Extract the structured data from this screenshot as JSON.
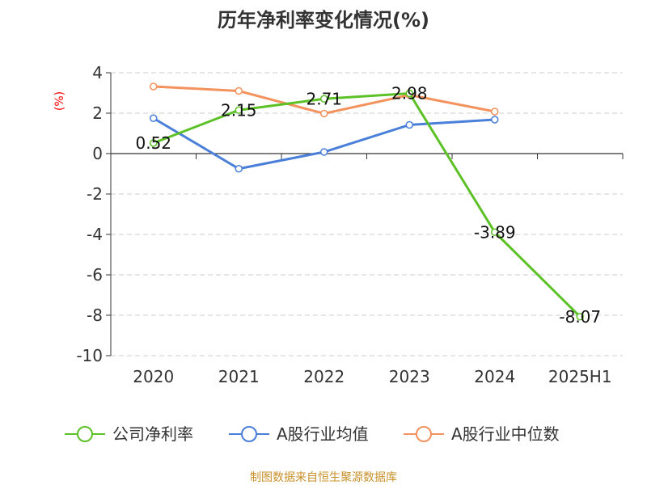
{
  "chart_data": {
    "type": "line",
    "title": "历年净利率变化情况(%)",
    "ylabel": "(%)",
    "xlabel": "",
    "categories": [
      "2020",
      "2021",
      "2022",
      "2023",
      "2024",
      "2025H1"
    ],
    "ylim": [
      -10,
      4
    ],
    "yticks": [
      4,
      2,
      0,
      -2,
      -4,
      -6,
      -8,
      -10
    ],
    "grid": true,
    "legend_position": "bottom",
    "series": [
      {
        "name": "公司净利率",
        "color": "#5cc126",
        "values": [
          0.52,
          2.15,
          2.71,
          2.98,
          -3.89,
          -8.07
        ],
        "labels": [
          "0.52",
          "2.15",
          "2.71",
          "2.98",
          "-3.89",
          "-8.07"
        ]
      },
      {
        "name": "A股行业均值",
        "color": "#4a7fd9",
        "values": [
          1.75,
          -0.75,
          0.08,
          1.42,
          1.68,
          null
        ]
      },
      {
        "name": "A股行业中位数",
        "color": "#f4925d",
        "values": [
          3.32,
          3.1,
          1.98,
          2.9,
          2.08,
          null
        ]
      }
    ]
  },
  "source": "制图数据来自恒生聚源数据库"
}
